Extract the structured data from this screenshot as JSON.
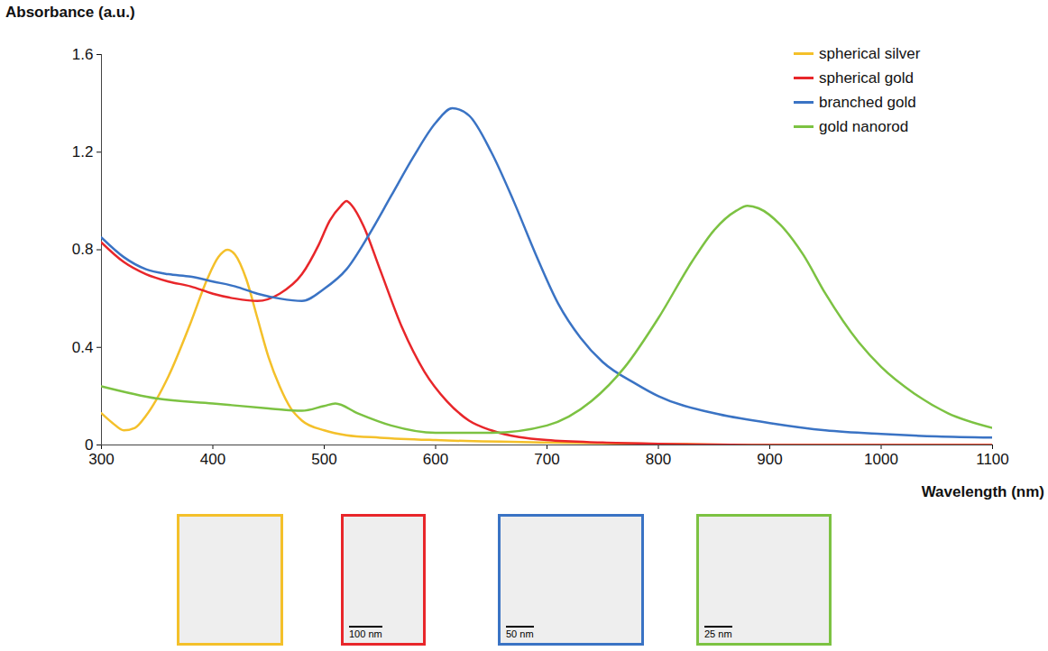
{
  "chart_data": {
    "type": "line",
    "y_label": "Absorbance (a.u.)",
    "x_label": "Wavelength (nm)",
    "xlim": [
      300,
      1100
    ],
    "xticks": [
      300,
      400,
      500,
      600,
      700,
      800,
      900,
      1000,
      1100
    ],
    "ylim": [
      0,
      1.6
    ],
    "yticks": [
      0,
      0.4,
      0.8,
      1.2,
      1.6
    ],
    "grid": false,
    "legend": "top-right",
    "series": [
      {
        "name": "spherical silver",
        "color": "#f4c02a",
        "x": [
          300,
          310,
          320,
          330,
          340,
          360,
          380,
          395,
          405,
          413,
          420,
          430,
          440,
          450,
          460,
          470,
          480,
          500,
          520,
          550,
          600,
          700,
          800,
          900,
          1000,
          1100
        ],
        "values": [
          0.13,
          0.09,
          0.06,
          0.07,
          0.12,
          0.28,
          0.5,
          0.68,
          0.77,
          0.8,
          0.78,
          0.68,
          0.52,
          0.36,
          0.24,
          0.15,
          0.1,
          0.06,
          0.04,
          0.03,
          0.02,
          0.01,
          0.005,
          0,
          0,
          0
        ]
      },
      {
        "name": "spherical gold",
        "color": "#e8262a",
        "x": [
          300,
          320,
          340,
          360,
          380,
          400,
          420,
          440,
          460,
          480,
          495,
          505,
          515,
          520,
          525,
          535,
          550,
          570,
          590,
          610,
          630,
          650,
          700,
          750,
          800,
          900,
          1000,
          1100
        ],
        "values": [
          0.83,
          0.75,
          0.7,
          0.67,
          0.65,
          0.62,
          0.6,
          0.59,
          0.62,
          0.7,
          0.82,
          0.92,
          0.98,
          1.0,
          0.98,
          0.9,
          0.72,
          0.48,
          0.3,
          0.18,
          0.1,
          0.06,
          0.02,
          0.01,
          0.005,
          0,
          0,
          0
        ]
      },
      {
        "name": "branched gold",
        "color": "#3a73c4",
        "x": [
          300,
          320,
          340,
          360,
          380,
          400,
          420,
          440,
          460,
          480,
          500,
          520,
          540,
          560,
          580,
          600,
          615,
          630,
          650,
          670,
          690,
          710,
          730,
          750,
          780,
          800,
          850,
          900,
          950,
          1000,
          1050,
          1100
        ],
        "values": [
          0.85,
          0.77,
          0.72,
          0.7,
          0.69,
          0.67,
          0.65,
          0.62,
          0.6,
          0.59,
          0.64,
          0.72,
          0.86,
          1.02,
          1.18,
          1.32,
          1.38,
          1.35,
          1.2,
          1.0,
          0.78,
          0.58,
          0.44,
          0.34,
          0.25,
          0.2,
          0.13,
          0.09,
          0.06,
          0.045,
          0.035,
          0.03
        ]
      },
      {
        "name": "gold nanorod",
        "color": "#7cc242",
        "x": [
          300,
          350,
          400,
          450,
          480,
          500,
          510,
          530,
          560,
          600,
          650,
          700,
          740,
          770,
          800,
          830,
          850,
          870,
          880,
          890,
          910,
          930,
          950,
          980,
          1000,
          1030,
          1060,
          1100
        ],
        "values": [
          0.24,
          0.19,
          0.17,
          0.15,
          0.14,
          0.16,
          0.17,
          0.13,
          0.08,
          0.05,
          0.05,
          0.08,
          0.18,
          0.32,
          0.52,
          0.75,
          0.88,
          0.96,
          0.98,
          0.97,
          0.9,
          0.78,
          0.62,
          0.42,
          0.32,
          0.21,
          0.13,
          0.07
        ]
      }
    ],
    "panels": [
      {
        "series": "spherical silver"
      },
      {
        "series": "spherical gold",
        "scale_bar": "100 nm"
      },
      {
        "series": "branched gold",
        "scale_bar": "50 nm"
      },
      {
        "series": "gold nanorod",
        "scale_bar": "25 nm"
      }
    ]
  }
}
